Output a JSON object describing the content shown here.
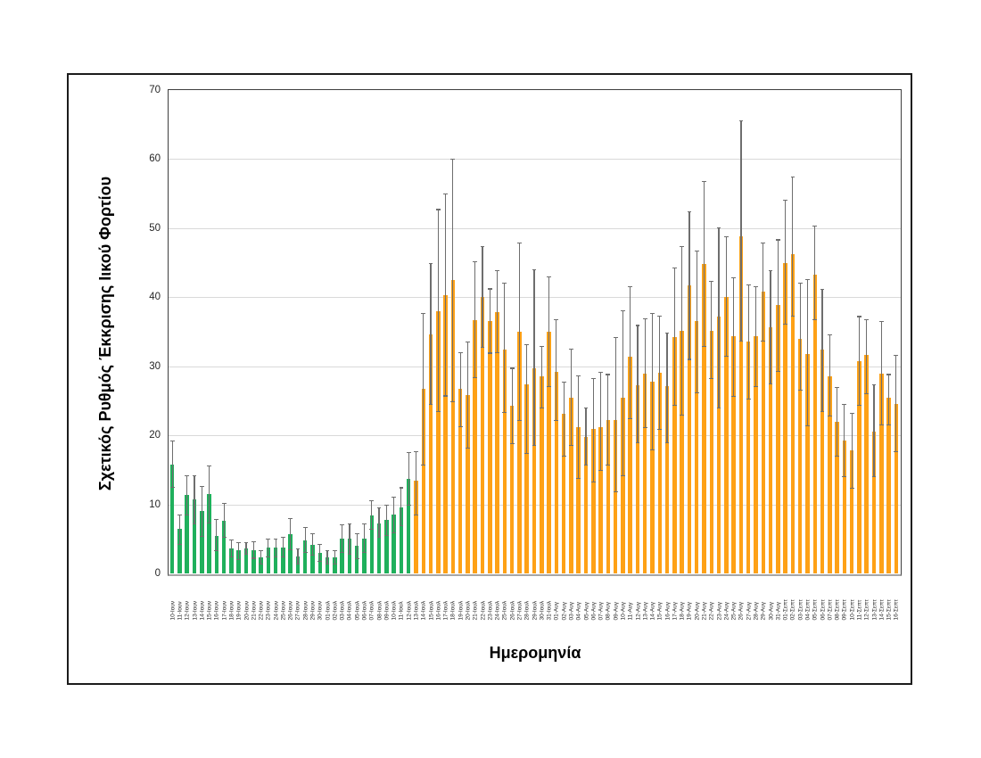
{
  "chart_data": {
    "type": "bar",
    "title": "",
    "xlabel": "Ημερομηνία",
    "ylabel": "Σχετικός Ρυθμός Έκκρισης Ιικού Φορτίου",
    "ylim": [
      0,
      70
    ],
    "yticks": [
      0,
      10,
      20,
      30,
      40,
      50,
      60,
      70
    ],
    "grid": true,
    "legend_position": "none",
    "error_bars": true,
    "colors": {
      "green": "#1fb05c",
      "orange": "#fea116",
      "error": "#6e6e6e",
      "grid": "#d9d9d9",
      "axis_line": "#a6a6a6",
      "plot_border": "#3f3f3f",
      "figure_border": "#1c1c1c"
    },
    "points": [
      {
        "date": "10-Ιουν",
        "value": 15.8,
        "lo": 12.5,
        "hi": 19.2,
        "color": "green"
      },
      {
        "date": "11-Ιουν",
        "value": 6.4,
        "lo": 4.2,
        "hi": 8.5,
        "color": "green"
      },
      {
        "date": "12-Ιουν",
        "value": 11.4,
        "lo": 8.5,
        "hi": 14.2,
        "color": "green"
      },
      {
        "date": "13-Ιουν",
        "value": 10.7,
        "lo": 7.2,
        "hi": 14.1,
        "color": "green"
      },
      {
        "date": "14-Ιουν",
        "value": 9.0,
        "lo": 5.4,
        "hi": 12.6,
        "color": "green"
      },
      {
        "date": "15-Ιουν",
        "value": 11.5,
        "lo": 7.3,
        "hi": 15.6,
        "color": "green"
      },
      {
        "date": "16-Ιουν",
        "value": 5.4,
        "lo": 3.3,
        "hi": 7.8,
        "color": "green"
      },
      {
        "date": "17-Ιουν",
        "value": 7.6,
        "lo": 5.2,
        "hi": 10.1,
        "color": "green"
      },
      {
        "date": "18-Ιουν",
        "value": 3.6,
        "lo": 2.4,
        "hi": 4.8,
        "color": "green"
      },
      {
        "date": "19-Ιουν",
        "value": 3.3,
        "lo": 2.0,
        "hi": 4.5,
        "color": "green"
      },
      {
        "date": "20-Ιουν",
        "value": 3.6,
        "lo": 2.8,
        "hi": 4.4,
        "color": "green"
      },
      {
        "date": "21-Ιουν",
        "value": 3.3,
        "lo": 2.2,
        "hi": 4.6,
        "color": "green"
      },
      {
        "date": "22-Ιουν",
        "value": 2.3,
        "lo": 1.3,
        "hi": 3.3,
        "color": "green"
      },
      {
        "date": "23-Ιουν",
        "value": 3.7,
        "lo": 2.4,
        "hi": 5.0,
        "color": "green"
      },
      {
        "date": "24-Ιουν",
        "value": 3.7,
        "lo": 2.4,
        "hi": 5.0,
        "color": "green"
      },
      {
        "date": "25-Ιουν",
        "value": 3.7,
        "lo": 2.4,
        "hi": 5.2,
        "color": "green"
      },
      {
        "date": "26-Ιουν",
        "value": 5.7,
        "lo": 3.4,
        "hi": 7.9,
        "color": "green"
      },
      {
        "date": "27-Ιουν",
        "value": 2.4,
        "lo": 1.3,
        "hi": 3.5,
        "color": "green"
      },
      {
        "date": "28-Ιουν",
        "value": 4.8,
        "lo": 3.0,
        "hi": 6.7,
        "color": "green"
      },
      {
        "date": "29-Ιουν",
        "value": 4.2,
        "lo": 2.7,
        "hi": 5.8,
        "color": "green"
      },
      {
        "date": "30-Ιουν",
        "value": 3.0,
        "lo": 1.8,
        "hi": 4.2,
        "color": "green"
      },
      {
        "date": "01-Ιουλ",
        "value": 2.3,
        "lo": 1.4,
        "hi": 3.3,
        "color": "green"
      },
      {
        "date": "02-Ιουλ",
        "value": 2.3,
        "lo": 1.4,
        "hi": 3.3,
        "color": "green"
      },
      {
        "date": "03-Ιουλ",
        "value": 5.1,
        "lo": 3.0,
        "hi": 7.0,
        "color": "green"
      },
      {
        "date": "04-Ιουλ",
        "value": 5.1,
        "lo": 2.8,
        "hi": 7.2,
        "color": "green"
      },
      {
        "date": "05-Ιουλ",
        "value": 4.0,
        "lo": 2.1,
        "hi": 5.8,
        "color": "green"
      },
      {
        "date": "06-Ιουλ",
        "value": 5.1,
        "lo": 3.0,
        "hi": 7.2,
        "color": "green"
      },
      {
        "date": "07-Ιουλ",
        "value": 8.4,
        "lo": 6.4,
        "hi": 10.5,
        "color": "green"
      },
      {
        "date": "08-Ιουλ",
        "value": 7.3,
        "lo": 5.2,
        "hi": 9.5,
        "color": "green"
      },
      {
        "date": "09-Ιουλ",
        "value": 7.8,
        "lo": 5.5,
        "hi": 9.9,
        "color": "green"
      },
      {
        "date": "10-Ιουλ",
        "value": 8.5,
        "lo": 5.9,
        "hi": 11.1,
        "color": "green"
      },
      {
        "date": "11-Ιουλ",
        "value": 9.6,
        "lo": 6.9,
        "hi": 12.4,
        "color": "green"
      },
      {
        "date": "12-Ιουλ",
        "value": 13.7,
        "lo": 9.9,
        "hi": 17.5,
        "color": "green"
      },
      {
        "date": "13-Ιουλ",
        "value": 13.5,
        "lo": 8.5,
        "hi": 17.6,
        "color": "orange"
      },
      {
        "date": "14-Ιουλ",
        "value": 26.7,
        "lo": 15.7,
        "hi": 37.6,
        "color": "orange"
      },
      {
        "date": "15-Ιουλ",
        "value": 34.6,
        "lo": 24.5,
        "hi": 44.9,
        "color": "orange"
      },
      {
        "date": "16-Ιουλ",
        "value": 38.0,
        "lo": 23.4,
        "hi": 52.7,
        "color": "orange"
      },
      {
        "date": "17-Ιουλ",
        "value": 40.3,
        "lo": 25.7,
        "hi": 55.0,
        "color": "orange"
      },
      {
        "date": "18-Ιουλ",
        "value": 42.5,
        "lo": 24.9,
        "hi": 60.0,
        "color": "orange"
      },
      {
        "date": "19-Ιουλ",
        "value": 26.7,
        "lo": 21.3,
        "hi": 32.0,
        "color": "orange"
      },
      {
        "date": "20-Ιουλ",
        "value": 25.8,
        "lo": 18.1,
        "hi": 33.5,
        "color": "orange"
      },
      {
        "date": "21-Ιουλ",
        "value": 36.7,
        "lo": 28.4,
        "hi": 45.1,
        "color": "orange"
      },
      {
        "date": "22-Ιουλ",
        "value": 40.0,
        "lo": 32.7,
        "hi": 47.3,
        "color": "orange"
      },
      {
        "date": "23-Ιουλ",
        "value": 36.6,
        "lo": 31.9,
        "hi": 41.2,
        "color": "orange"
      },
      {
        "date": "24-Ιουλ",
        "value": 37.9,
        "lo": 32.0,
        "hi": 43.9,
        "color": "orange"
      },
      {
        "date": "25-Ιουλ",
        "value": 32.4,
        "lo": 23.3,
        "hi": 42.0,
        "color": "orange"
      },
      {
        "date": "26-Ιουλ",
        "value": 24.3,
        "lo": 18.8,
        "hi": 29.7,
        "color": "orange"
      },
      {
        "date": "27-Ιουλ",
        "value": 35.0,
        "lo": 22.2,
        "hi": 47.8,
        "color": "orange"
      },
      {
        "date": "28-Ιουλ",
        "value": 27.4,
        "lo": 17.4,
        "hi": 33.1,
        "color": "orange"
      },
      {
        "date": "29-Ιουλ",
        "value": 29.7,
        "lo": 18.5,
        "hi": 44.0,
        "color": "orange"
      },
      {
        "date": "30-Ιουλ",
        "value": 28.5,
        "lo": 23.9,
        "hi": 32.9,
        "color": "orange"
      },
      {
        "date": "31-Ιουλ",
        "value": 35.0,
        "lo": 27.1,
        "hi": 43.0,
        "color": "orange"
      },
      {
        "date": "01-Αυγ",
        "value": 29.2,
        "lo": 22.1,
        "hi": 36.7,
        "color": "orange"
      },
      {
        "date": "02-Αυγ",
        "value": 23.1,
        "lo": 17.0,
        "hi": 27.7,
        "color": "orange"
      },
      {
        "date": "03-Αυγ",
        "value": 25.4,
        "lo": 18.5,
        "hi": 32.5,
        "color": "orange"
      },
      {
        "date": "04-Αυγ",
        "value": 21.2,
        "lo": 13.8,
        "hi": 28.6,
        "color": "orange"
      },
      {
        "date": "05-Αυγ",
        "value": 19.8,
        "lo": 15.7,
        "hi": 23.9,
        "color": "orange"
      },
      {
        "date": "06-Αυγ",
        "value": 20.9,
        "lo": 13.2,
        "hi": 28.2,
        "color": "orange"
      },
      {
        "date": "07-Αυγ",
        "value": 21.2,
        "lo": 14.9,
        "hi": 29.1,
        "color": "orange"
      },
      {
        "date": "08-Αυγ",
        "value": 22.2,
        "lo": 15.7,
        "hi": 28.8,
        "color": "orange"
      },
      {
        "date": "09-Αυγ",
        "value": 22.2,
        "lo": 11.8,
        "hi": 34.2,
        "color": "orange"
      },
      {
        "date": "10-Αυγ",
        "value": 25.4,
        "lo": 14.1,
        "hi": 38.0,
        "color": "orange"
      },
      {
        "date": "11-Αυγ",
        "value": 31.4,
        "lo": 22.4,
        "hi": 41.5,
        "color": "orange"
      },
      {
        "date": "12-Αυγ",
        "value": 27.2,
        "lo": 18.9,
        "hi": 35.9,
        "color": "orange"
      },
      {
        "date": "13-Αυγ",
        "value": 29.0,
        "lo": 21.1,
        "hi": 36.9,
        "color": "orange"
      },
      {
        "date": "14-Αυγ",
        "value": 27.8,
        "lo": 17.9,
        "hi": 37.7,
        "color": "orange"
      },
      {
        "date": "15-Αυγ",
        "value": 29.1,
        "lo": 20.9,
        "hi": 37.3,
        "color": "orange"
      },
      {
        "date": "16-Αυγ",
        "value": 27.1,
        "lo": 18.9,
        "hi": 34.8,
        "color": "orange"
      },
      {
        "date": "17-Αυγ",
        "value": 34.2,
        "lo": 24.4,
        "hi": 44.2,
        "color": "orange"
      },
      {
        "date": "18-Αυγ",
        "value": 35.1,
        "lo": 22.9,
        "hi": 47.3,
        "color": "orange"
      },
      {
        "date": "19-Αυγ",
        "value": 41.7,
        "lo": 31.0,
        "hi": 52.4,
        "color": "orange"
      },
      {
        "date": "20-Αυγ",
        "value": 36.5,
        "lo": 26.1,
        "hi": 46.7,
        "color": "orange"
      },
      {
        "date": "21-Αυγ",
        "value": 44.8,
        "lo": 32.9,
        "hi": 56.8,
        "color": "orange"
      },
      {
        "date": "22-Αυγ",
        "value": 35.2,
        "lo": 28.2,
        "hi": 42.3,
        "color": "orange"
      },
      {
        "date": "23-Αυγ",
        "value": 37.2,
        "lo": 23.9,
        "hi": 50.1,
        "color": "orange"
      },
      {
        "date": "24-Αυγ",
        "value": 40.1,
        "lo": 31.5,
        "hi": 48.8,
        "color": "orange"
      },
      {
        "date": "25-Αυγ",
        "value": 34.4,
        "lo": 25.6,
        "hi": 42.8,
        "color": "orange"
      },
      {
        "date": "26-Αυγ",
        "value": 48.8,
        "lo": 33.6,
        "hi": 65.5,
        "color": "orange"
      },
      {
        "date": "27-Αυγ",
        "value": 33.6,
        "lo": 25.2,
        "hi": 41.8,
        "color": "orange"
      },
      {
        "date": "28-Αυγ",
        "value": 34.3,
        "lo": 27.1,
        "hi": 41.5,
        "color": "orange"
      },
      {
        "date": "29-Αυγ",
        "value": 40.8,
        "lo": 33.7,
        "hi": 47.8,
        "color": "orange"
      },
      {
        "date": "30-Αυγ",
        "value": 35.7,
        "lo": 27.4,
        "hi": 43.9,
        "color": "orange"
      },
      {
        "date": "31-Αυγ",
        "value": 38.9,
        "lo": 29.3,
        "hi": 48.3,
        "color": "orange"
      },
      {
        "date": "01-Σεπτ",
        "value": 45.0,
        "lo": 36.1,
        "hi": 54.1,
        "color": "orange"
      },
      {
        "date": "02-Σεπτ",
        "value": 46.2,
        "lo": 37.3,
        "hi": 57.4,
        "color": "orange"
      },
      {
        "date": "03-Σεπτ",
        "value": 34.0,
        "lo": 26.5,
        "hi": 42.0,
        "color": "orange"
      },
      {
        "date": "04-Σεπτ",
        "value": 31.8,
        "lo": 21.4,
        "hi": 42.5,
        "color": "orange"
      },
      {
        "date": "05-Σεπτ",
        "value": 43.3,
        "lo": 36.7,
        "hi": 50.3,
        "color": "orange"
      },
      {
        "date": "06-Σεπτ",
        "value": 32.4,
        "lo": 23.4,
        "hi": 41.1,
        "color": "orange"
      },
      {
        "date": "07-Σεπτ",
        "value": 28.6,
        "lo": 22.8,
        "hi": 34.6,
        "color": "orange"
      },
      {
        "date": "08-Σεπτ",
        "value": 21.9,
        "lo": 17.0,
        "hi": 26.9,
        "color": "orange"
      },
      {
        "date": "09-Σεπτ",
        "value": 19.2,
        "lo": 14.0,
        "hi": 24.5,
        "color": "orange"
      },
      {
        "date": "10-Σεπτ",
        "value": 17.8,
        "lo": 12.3,
        "hi": 23.2,
        "color": "orange"
      },
      {
        "date": "11-Σεπτ",
        "value": 30.8,
        "lo": 24.3,
        "hi": 37.2,
        "color": "orange"
      },
      {
        "date": "12-Σεπτ",
        "value": 31.7,
        "lo": 26.0,
        "hi": 36.7,
        "color": "orange"
      },
      {
        "date": "13-Σεπτ",
        "value": 20.5,
        "lo": 14.0,
        "hi": 27.3,
        "color": "orange"
      },
      {
        "date": "14-Σεπτ",
        "value": 29.0,
        "lo": 21.5,
        "hi": 36.5,
        "color": "orange"
      },
      {
        "date": "15-Σεπτ",
        "value": 25.4,
        "lo": 21.5,
        "hi": 28.8,
        "color": "orange"
      },
      {
        "date": "16-Σεπτ",
        "value": 24.5,
        "lo": 17.6,
        "hi": 31.6,
        "color": "orange"
      }
    ]
  }
}
